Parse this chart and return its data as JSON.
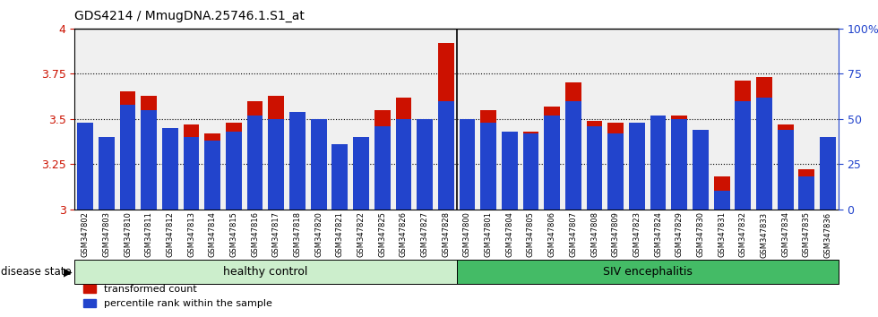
{
  "title": "GDS4214 / MmugDNA.25746.1.S1_at",
  "samples": [
    "GSM347802",
    "GSM347803",
    "GSM347810",
    "GSM347811",
    "GSM347812",
    "GSM347813",
    "GSM347814",
    "GSM347815",
    "GSM347816",
    "GSM347817",
    "GSM347818",
    "GSM347820",
    "GSM347821",
    "GSM347822",
    "GSM347825",
    "GSM347826",
    "GSM347827",
    "GSM347828",
    "GSM347800",
    "GSM347801",
    "GSM347804",
    "GSM347805",
    "GSM347806",
    "GSM347807",
    "GSM347808",
    "GSM347809",
    "GSM347823",
    "GSM347824",
    "GSM347829",
    "GSM347830",
    "GSM347831",
    "GSM347832",
    "GSM347833",
    "GSM347834",
    "GSM347835",
    "GSM347836"
  ],
  "transformed_count": [
    3.4,
    3.38,
    3.65,
    3.63,
    3.4,
    3.47,
    3.42,
    3.48,
    3.6,
    3.63,
    3.5,
    3.33,
    3.27,
    3.38,
    3.55,
    3.62,
    3.5,
    3.92,
    3.49,
    3.55,
    3.38,
    3.43,
    3.57,
    3.7,
    3.49,
    3.48,
    3.46,
    3.52,
    3.52,
    3.33,
    3.18,
    3.71,
    3.73,
    3.47,
    3.22,
    3.36
  ],
  "percentile_rank": [
    48,
    40,
    58,
    55,
    45,
    40,
    38,
    43,
    52,
    50,
    54,
    50,
    36,
    40,
    46,
    50,
    50,
    60,
    50,
    48,
    43,
    42,
    52,
    60,
    46,
    42,
    48,
    52,
    50,
    44,
    10,
    60,
    62,
    44,
    18,
    40
  ],
  "group_splits": [
    18,
    36
  ],
  "group_labels": [
    "healthy control",
    "SIV encephalitis"
  ],
  "group_hc_color": "#CCEECC",
  "group_siv_color": "#44BB66",
  "y_min": 3.0,
  "y_max": 4.0,
  "y_ticks": [
    3.0,
    3.25,
    3.5,
    3.75,
    4.0
  ],
  "right_y_ticks": [
    0,
    25,
    50,
    75,
    100
  ],
  "bar_color": "#CC1100",
  "percentile_color": "#2244CC",
  "legend_label_count": "transformed count",
  "legend_label_percentile": "percentile rank within the sample",
  "disease_state_label": "disease state"
}
